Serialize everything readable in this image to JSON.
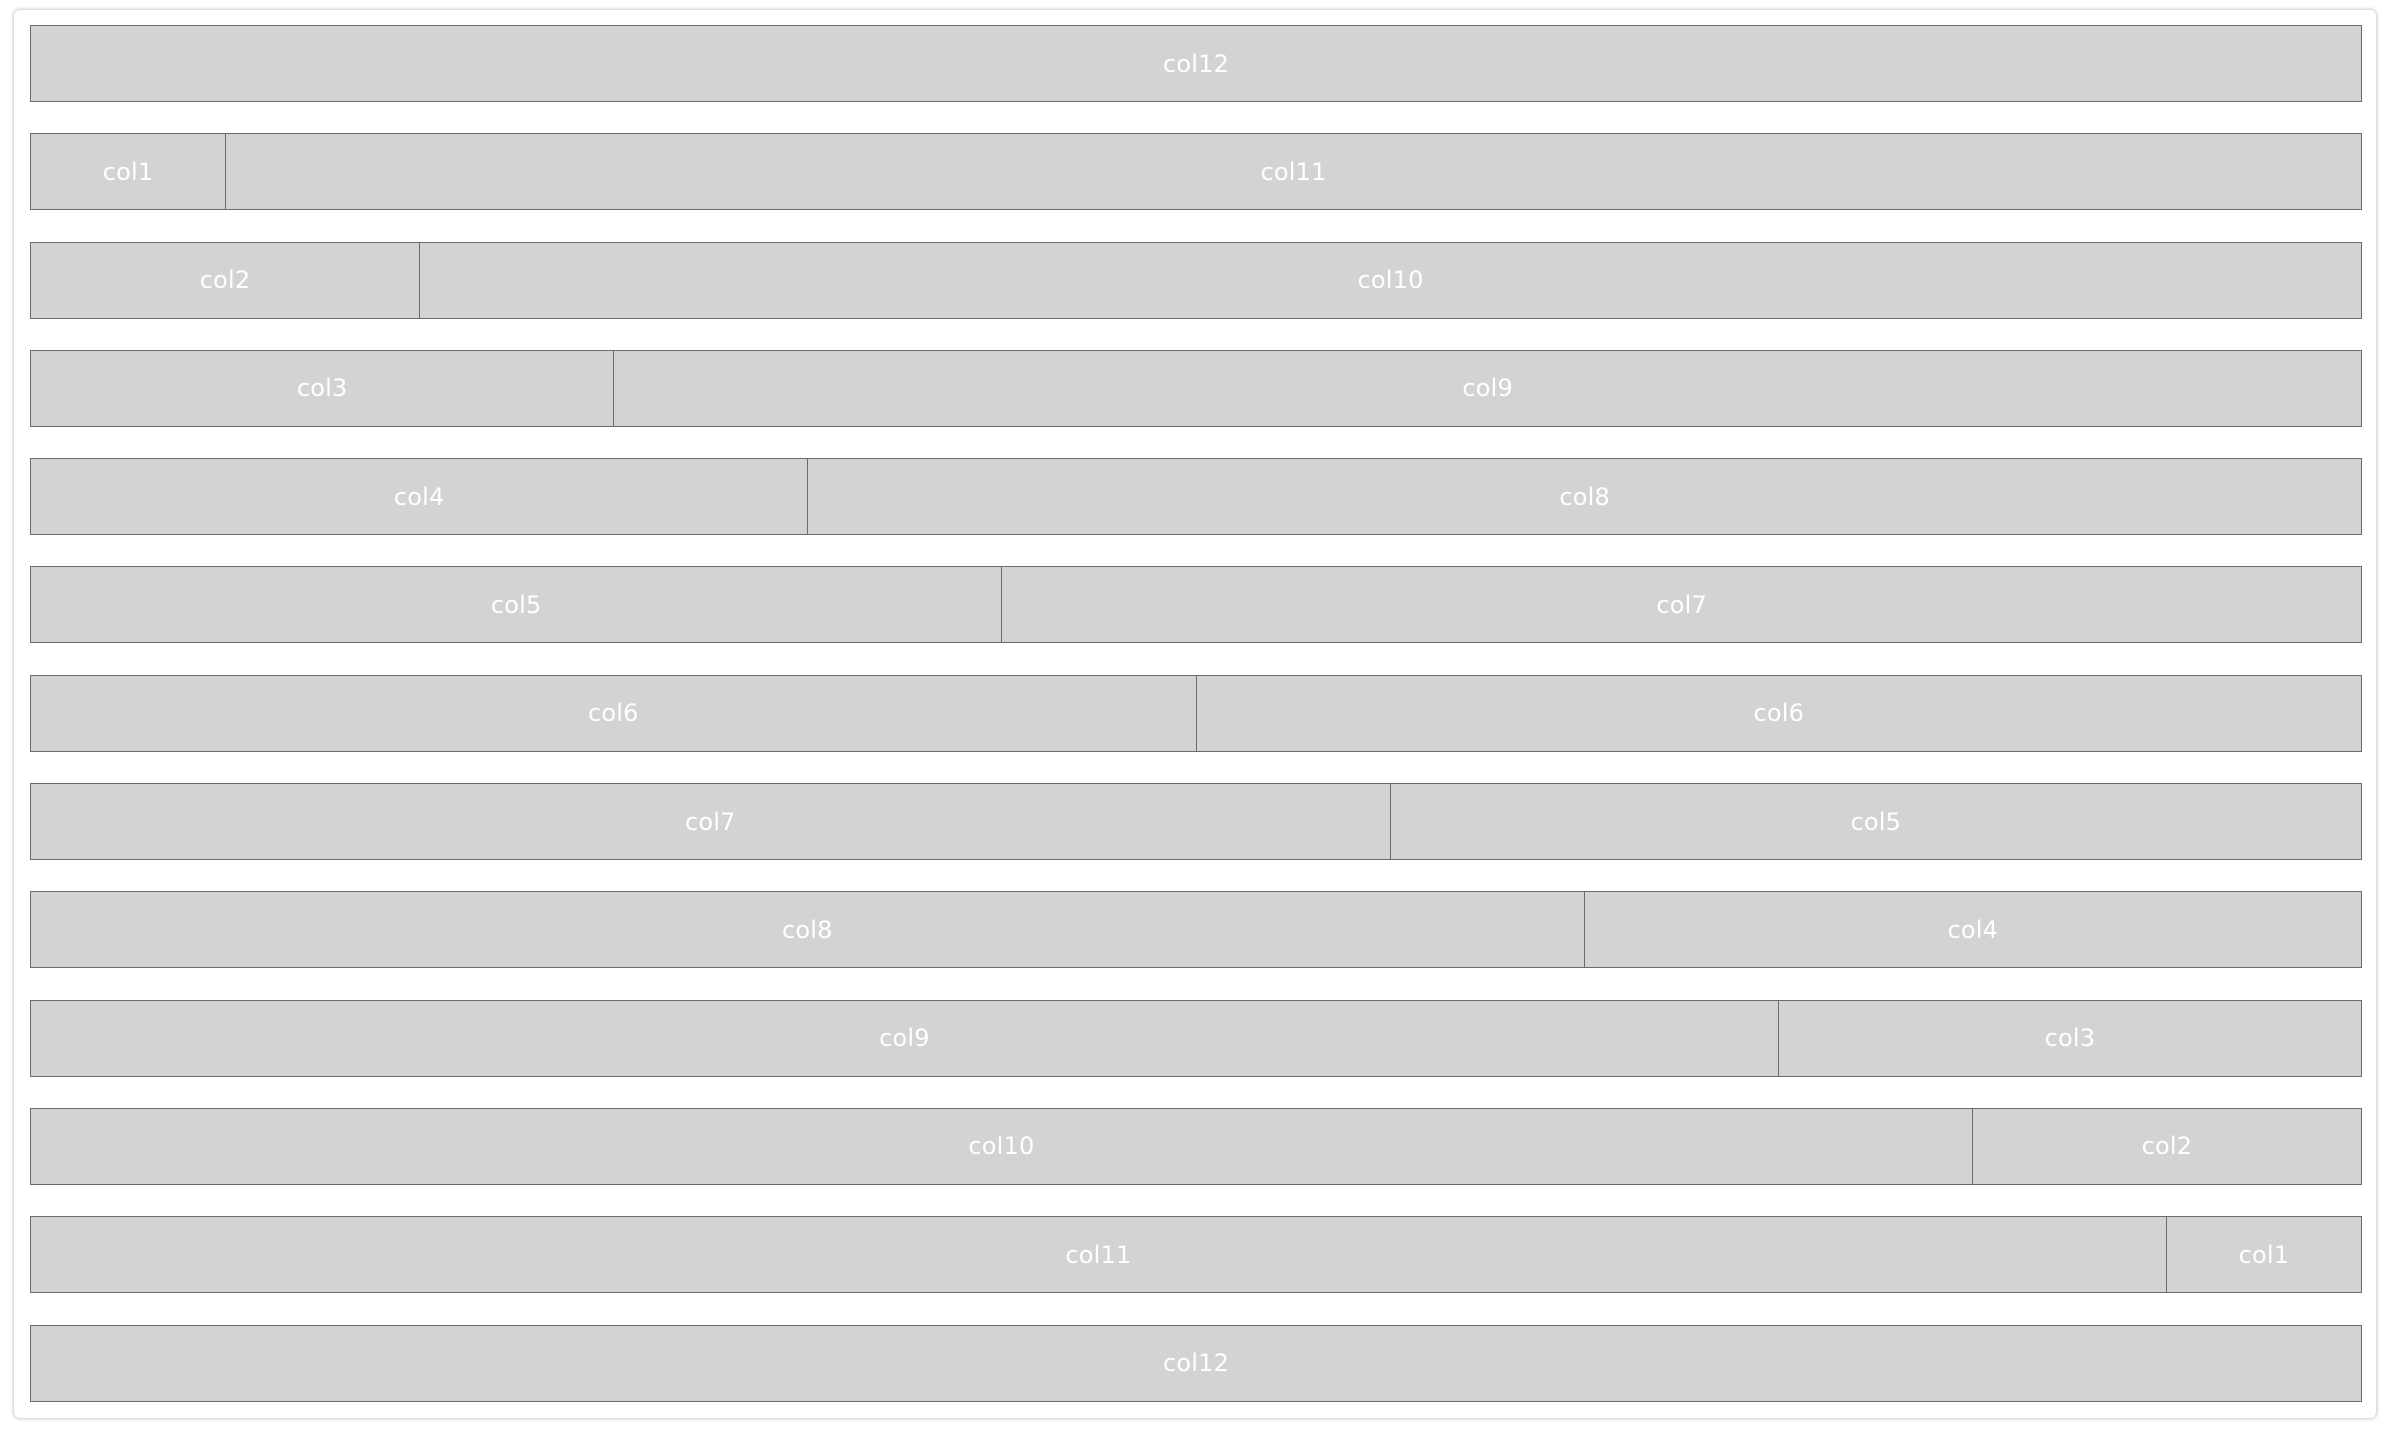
{
  "rows": [
    {
      "cols": [
        {
          "label": "col12",
          "span": 12
        }
      ]
    },
    {
      "cols": [
        {
          "label": "col1",
          "span": 1
        },
        {
          "label": "col11",
          "span": 11
        }
      ]
    },
    {
      "cols": [
        {
          "label": "col2",
          "span": 2
        },
        {
          "label": "col10",
          "span": 10
        }
      ]
    },
    {
      "cols": [
        {
          "label": "col3",
          "span": 3
        },
        {
          "label": "col9",
          "span": 9
        }
      ]
    },
    {
      "cols": [
        {
          "label": "col4",
          "span": 4
        },
        {
          "label": "col8",
          "span": 8
        }
      ]
    },
    {
      "cols": [
        {
          "label": "col5",
          "span": 5
        },
        {
          "label": "col7",
          "span": 7
        }
      ]
    },
    {
      "cols": [
        {
          "label": "col6",
          "span": 6
        },
        {
          "label": "col6",
          "span": 6
        }
      ]
    },
    {
      "cols": [
        {
          "label": "col7",
          "span": 7
        },
        {
          "label": "col5",
          "span": 5
        }
      ]
    },
    {
      "cols": [
        {
          "label": "col8",
          "span": 8
        },
        {
          "label": "col4",
          "span": 4
        }
      ]
    },
    {
      "cols": [
        {
          "label": "col9",
          "span": 9
        },
        {
          "label": "col3",
          "span": 3
        }
      ]
    },
    {
      "cols": [
        {
          "label": "col10",
          "span": 10
        },
        {
          "label": "col2",
          "span": 2
        }
      ]
    },
    {
      "cols": [
        {
          "label": "col11",
          "span": 11
        },
        {
          "label": "col1",
          "span": 1
        }
      ]
    },
    {
      "cols": [
        {
          "label": "col12",
          "span": 12
        }
      ]
    }
  ]
}
